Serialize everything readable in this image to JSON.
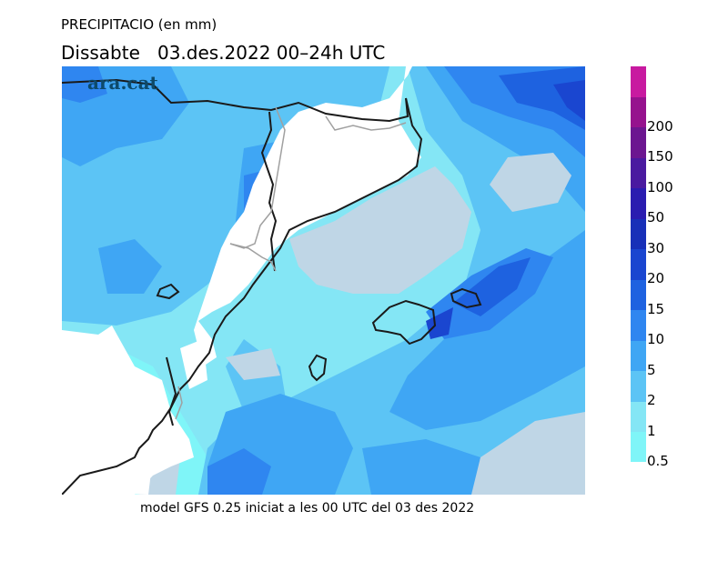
{
  "header": {
    "title_line1": "PRECIPITACIO (en mm)",
    "title_line2": "Dissabte   03.des.2022 00–24h UTC"
  },
  "logo": {
    "text": "ara.cat"
  },
  "footer": {
    "text": "model GFS 0.25 iniciat a les 00 UTC del 03 des 2022"
  },
  "legend": {
    "levels": [
      {
        "label": "0.5",
        "color": "#7ff5f8"
      },
      {
        "label": "1",
        "color": "#84e6f5"
      },
      {
        "label": "2",
        "color": "#5cc4f5"
      },
      {
        "label": "5",
        "color": "#3fa6f4"
      },
      {
        "label": "10",
        "color": "#2f86f0"
      },
      {
        "label": "15",
        "color": "#1e62e0"
      },
      {
        "label": "20",
        "color": "#1a46d0"
      },
      {
        "label": "30",
        "color": "#1830b8"
      },
      {
        "label": "50",
        "color": "#2a1cb0"
      },
      {
        "label": "100",
        "color": "#4a1aa0"
      },
      {
        "label": "150",
        "color": "#6c1690"
      },
      {
        "label": "200",
        "color": "#96128e"
      },
      {
        "label": "",
        "color": "#c81aa0"
      }
    ]
  },
  "map": {
    "colors": {
      "land_no_precip": "#ffffff",
      "sea_no_precip": "#bfd6e6",
      "coastline": "#1a1a1a",
      "border": "#a0a0a0"
    }
  }
}
